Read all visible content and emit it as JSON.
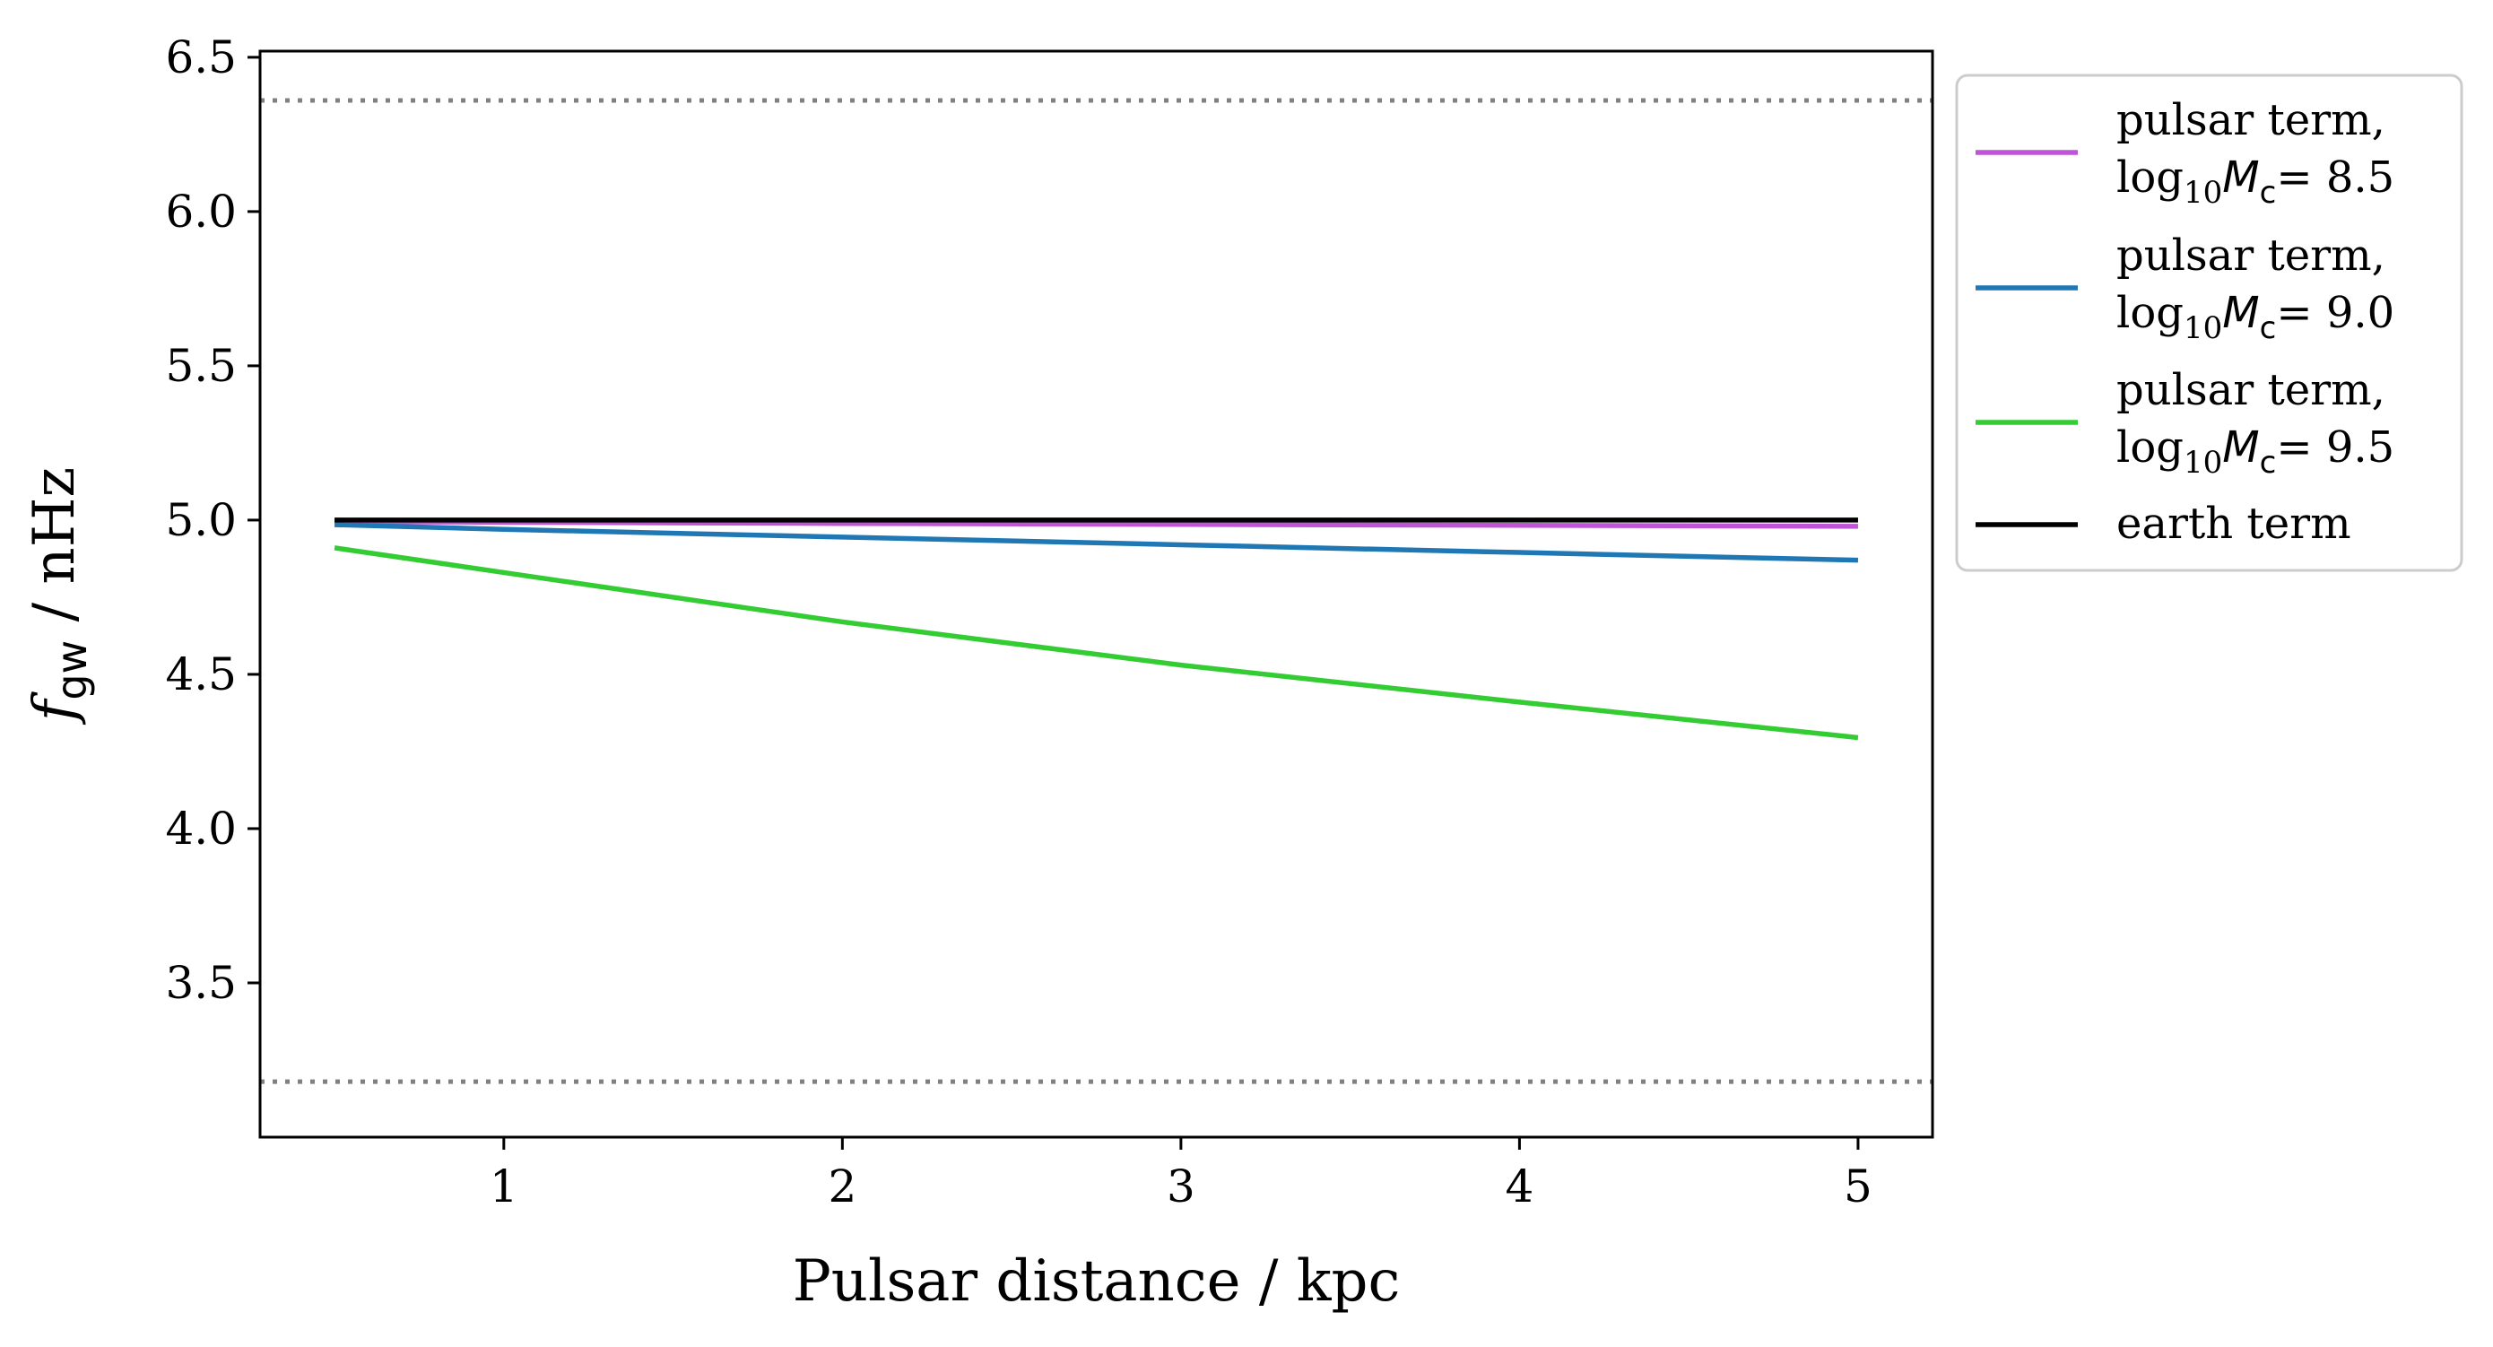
{
  "chart_data": {
    "type": "line",
    "xlabel": "Pulsar distance / kpc",
    "ylabel": {
      "main": "f",
      "subscript": "gw",
      "rest": " / nHz"
    },
    "xlim": [
      0.28,
      5.22
    ],
    "ylim": [
      3.0,
      6.52
    ],
    "xticks": [
      1,
      2,
      3,
      4,
      5
    ],
    "xtick_labels": [
      "1",
      "2",
      "3",
      "4",
      "5"
    ],
    "yticks": [
      3.5,
      4.0,
      4.5,
      5.0,
      5.5,
      6.0,
      6.5
    ],
    "ytick_labels": [
      "3.5",
      "4.0",
      "4.5",
      "5.0",
      "5.5",
      "6.0",
      "6.5"
    ],
    "grid": false,
    "legend_position": "outside-right-top",
    "reference_lines": [
      {
        "y": 6.36,
        "style": "dotted",
        "color": "#808080"
      },
      {
        "y": 3.18,
        "style": "dotted",
        "color": "#808080"
      }
    ],
    "series": [
      {
        "name": "pulsar term, log10Mc= 8.5",
        "legend_line1": "pulsar term,",
        "legend_line2": {
          "prefix": "log",
          "sub10": "10",
          "M": "M",
          "subc": "c",
          "suffix": "= 8.5"
        },
        "color": "#bf55d6",
        "x": [
          0.5,
          1,
          2,
          3,
          4,
          5
        ],
        "y": [
          4.995,
          4.993,
          4.989,
          4.986,
          4.983,
          4.98
        ]
      },
      {
        "name": "pulsar term, log10Mc= 9.0",
        "legend_line1": "pulsar term,",
        "legend_line2": {
          "prefix": "log",
          "sub10": "10",
          "M": "M",
          "subc": "c",
          "suffix": "= 9.0"
        },
        "color": "#1f77b4",
        "x": [
          0.5,
          1,
          2,
          3,
          4,
          5
        ],
        "y": [
          4.985,
          4.97,
          4.945,
          4.92,
          4.895,
          4.87
        ]
      },
      {
        "name": "pulsar term, log10Mc= 9.5",
        "legend_line1": "pulsar term,",
        "legend_line2": {
          "prefix": "log",
          "sub10": "10",
          "M": "M",
          "subc": "c",
          "suffix": "= 9.5"
        },
        "color": "#33cc33",
        "x": [
          0.5,
          1,
          2,
          3,
          4,
          5
        ],
        "y": [
          4.91,
          4.83,
          4.67,
          4.53,
          4.41,
          4.295
        ]
      },
      {
        "name": "earth term",
        "legend_line1": "earth term",
        "color": "#000000",
        "x": [
          0.5,
          5
        ],
        "y": [
          5.0,
          5.0
        ]
      }
    ]
  }
}
